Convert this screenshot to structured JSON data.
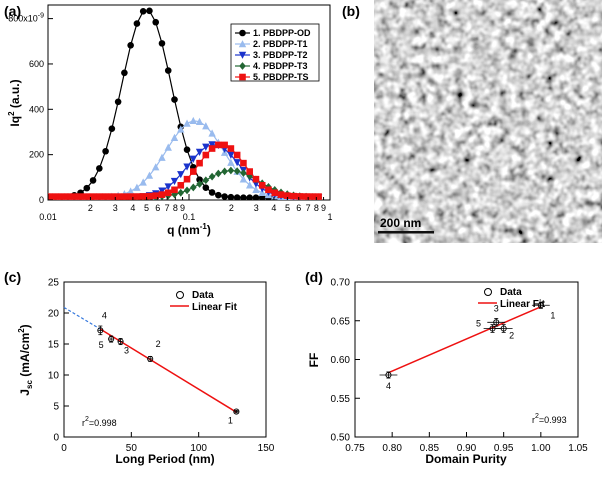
{
  "panels": [
    {
      "id": "a",
      "label": "(a)"
    },
    {
      "id": "b",
      "label": "(b)"
    },
    {
      "id": "c",
      "label": "(c)"
    },
    {
      "id": "d",
      "label": "(d)"
    }
  ],
  "image_b": {
    "scale_bar_label": "200 nm",
    "description": "grayscale fibrillar texture micrograph"
  },
  "chart_data": [
    {
      "panel": "a",
      "type": "line",
      "xlabel": "q (nm",
      "xlabel_sup": "-1",
      "xlabel_close": ")",
      "ylabel": "Iq",
      "ylabel_sup": "2",
      "ylabel_suffix": " (a.u.)",
      "xscale": "log",
      "xlim": [
        0.01,
        1
      ],
      "ylim": [
        0,
        860
      ],
      "yticks": [
        0,
        200,
        400,
        600
      ],
      "ytick_top_label": "800x10",
      "ytick_top_sup": "-9",
      "ytick_top_value": 800,
      "major_x_ticks": [
        {
          "v": 0.01,
          "label": "0.01"
        },
        {
          "v": 0.1,
          "label": "0.1"
        },
        {
          "v": 1,
          "label": "1"
        }
      ],
      "minor_x_tick_labels": [
        "2",
        "3",
        "4",
        "5",
        "6",
        "7",
        "8",
        "9",
        "2",
        "3",
        "4",
        "5",
        "6",
        "7",
        "8",
        "9"
      ],
      "legend_position": "top-right",
      "series": [
        {
          "name": "1. PBDPP-OD",
          "color": "#000000",
          "marker": "circle",
          "peak_q": 0.05,
          "peak_y": 840,
          "width": 0.4,
          "baseline": 10
        },
        {
          "name": "2. PBDPP-T1",
          "color": "#99bbee",
          "marker": "triangle-up",
          "peak_q": 0.11,
          "peak_y": 350,
          "width": 0.47,
          "baseline": 10
        },
        {
          "name": "3. PBDPP-T2",
          "color": "#1a33cc",
          "marker": "triangle-down",
          "peak_q": 0.15,
          "peak_y": 245,
          "width": 0.42,
          "baseline": 10
        },
        {
          "name": "4. PBDPP-T3",
          "color": "#226633",
          "marker": "diamond",
          "peak_q": 0.2,
          "peak_y": 130,
          "width": 0.44,
          "baseline": 12
        },
        {
          "name": "5. PBDPP-TS",
          "color": "#ee1111",
          "marker": "square",
          "peak_q": 0.17,
          "peak_y": 245,
          "width": 0.38,
          "baseline": 15
        }
      ],
      "q_points": 44
    },
    {
      "panel": "c",
      "type": "scatter",
      "xlabel": "Long Period (nm)",
      "ylabel_main": "J",
      "ylabel_sub": "sc",
      "ylabel_units": " (mA/cm",
      "ylabel_units_sup": "2",
      "ylabel_units_close": ")",
      "xlim": [
        0,
        150
      ],
      "ylim": [
        0,
        25
      ],
      "xticks": [
        0,
        50,
        100,
        150
      ],
      "yticks": [
        0,
        5,
        10,
        15,
        20,
        25
      ],
      "legend": [
        "Data",
        "Linear Fit"
      ],
      "legend_position": "top-right",
      "points": [
        {
          "x": 27,
          "y": 17.2,
          "label": "4",
          "err": 0.7,
          "xerr": 1.5
        },
        {
          "x": 35,
          "y": 15.8,
          "label": "5",
          "err": 0.5,
          "xerr": 1.5
        },
        {
          "x": 42,
          "y": 15.4,
          "label": "3",
          "err": 0.5,
          "xerr": 1.5
        },
        {
          "x": 64,
          "y": 12.6,
          "label": "2",
          "err": 0.4,
          "xerr": 1.5
        },
        {
          "x": 128,
          "y": 4.1,
          "label": "1",
          "err": 0.2,
          "xerr": 1.5
        }
      ],
      "fit": {
        "x": [
          27,
          128
        ],
        "y": [
          17.4,
          4.0
        ],
        "color": "#ee1111"
      },
      "extrapolation": {
        "x": [
          0,
          27
        ],
        "y": [
          20.9,
          17.4
        ],
        "color": "#3377dd"
      },
      "r2_prefix": "r",
      "r2_sup": "2",
      "r2_value": "=0.998"
    },
    {
      "panel": "d",
      "type": "scatter",
      "xlabel": "Domain Purity",
      "ylabel": "FF",
      "xlim": [
        0.75,
        1.05
      ],
      "ylim": [
        0.5,
        0.7
      ],
      "xticks": [
        0.75,
        0.8,
        0.85,
        0.9,
        0.95,
        1.0,
        1.05
      ],
      "xtick_labels": [
        "0.75",
        "0.80",
        "0.85",
        "0.90",
        "0.95",
        "1.00",
        "1.05"
      ],
      "yticks": [
        0.5,
        0.55,
        0.6,
        0.65,
        0.7
      ],
      "ytick_labels": [
        "0.50",
        "0.55",
        "0.60",
        "0.65",
        "0.70"
      ],
      "legend": [
        "Data",
        "Linear Fit"
      ],
      "legend_position": "top-right",
      "points": [
        {
          "x": 0.795,
          "y": 0.58,
          "label": "4",
          "err": 0.004,
          "xerr": 0.012
        },
        {
          "x": 0.935,
          "y": 0.64,
          "label": "5",
          "err": 0.005,
          "xerr": 0.012
        },
        {
          "x": 0.94,
          "y": 0.648,
          "label": "3",
          "err": 0.005,
          "xerr": 0.012
        },
        {
          "x": 0.95,
          "y": 0.64,
          "label": "2",
          "err": 0.005,
          "xerr": 0.012
        },
        {
          "x": 1.0,
          "y": 0.67,
          "label": "1",
          "err": 0.004,
          "xerr": 0.012
        }
      ],
      "fit": {
        "x": [
          0.795,
          1.0
        ],
        "y": [
          0.583,
          0.668
        ],
        "color": "#ee1111"
      },
      "r2_prefix": "r",
      "r2_sup": "2",
      "r2_value": "=0.993"
    }
  ]
}
